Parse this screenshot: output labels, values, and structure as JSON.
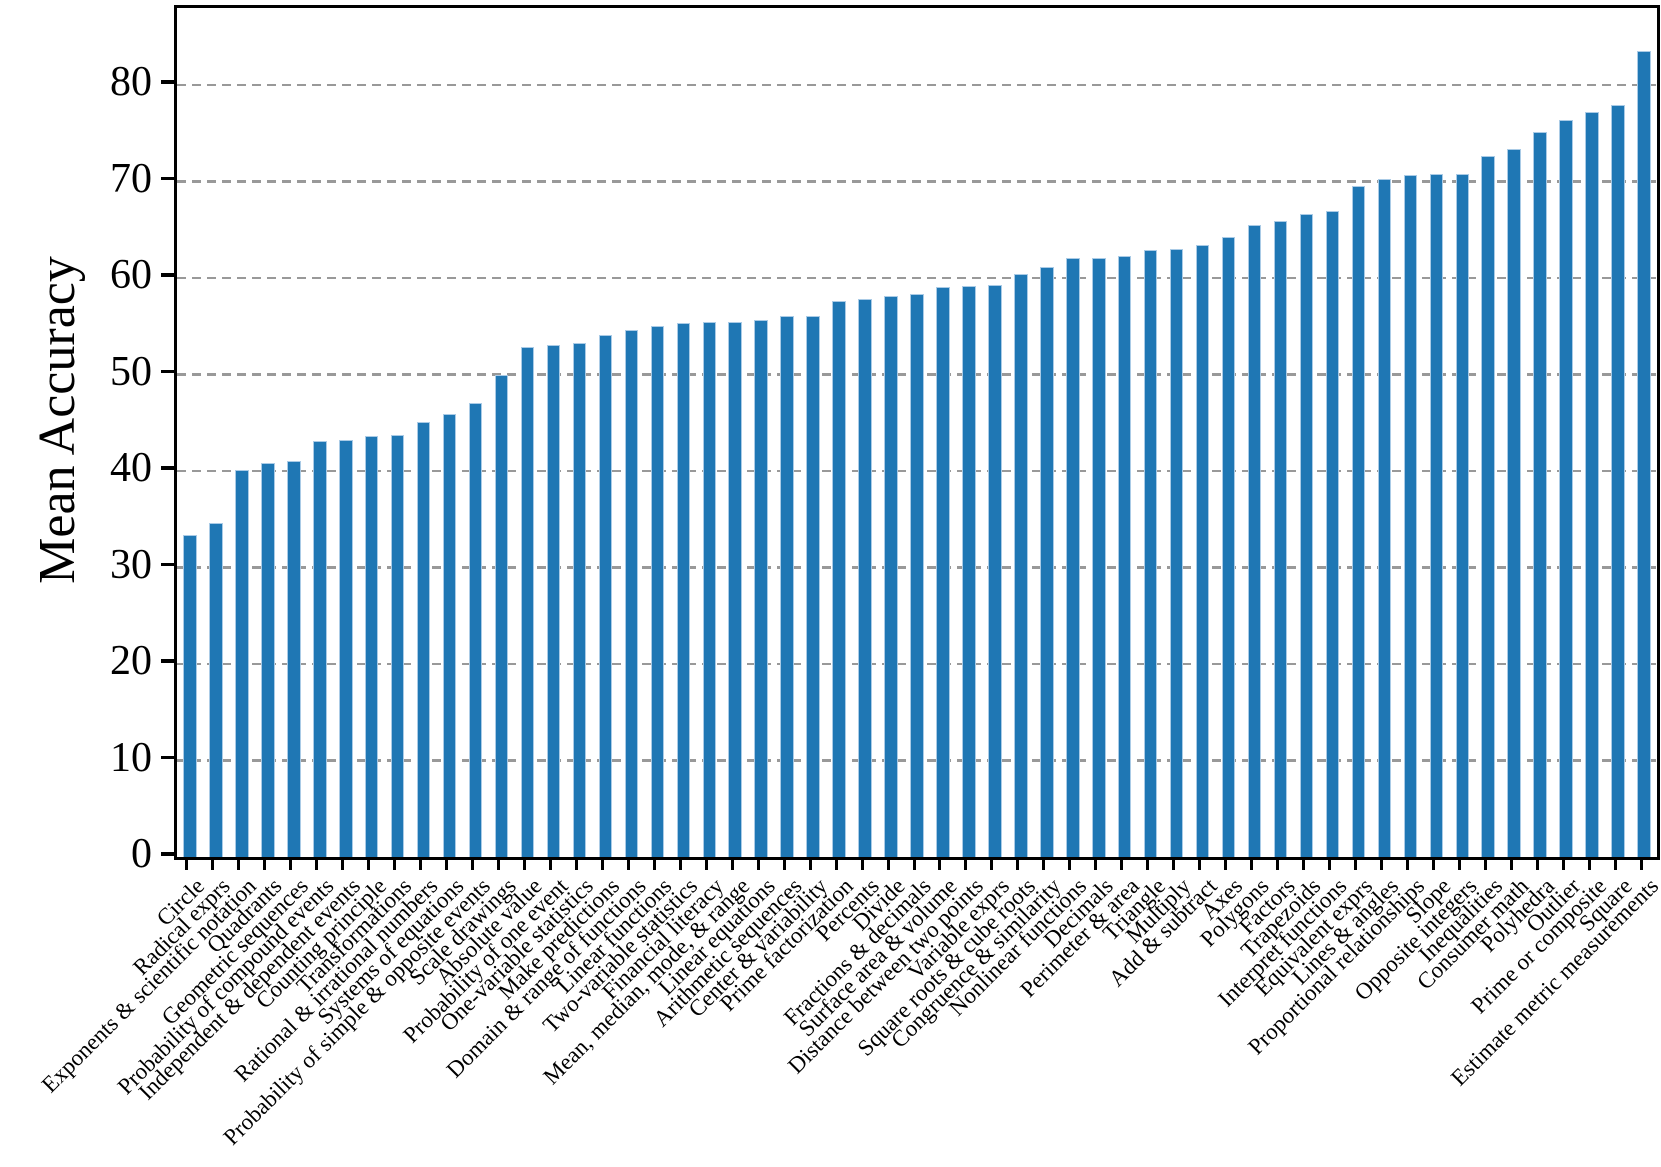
{
  "chart_data": {
    "type": "bar",
    "title": "",
    "xlabel": "",
    "ylabel": "Mean Accuracy",
    "ylim": [
      0,
      88
    ],
    "yticks": [
      0,
      10,
      20,
      30,
      40,
      50,
      60,
      70,
      80
    ],
    "grid": "horizontal-dashed",
    "legend": "none",
    "bar_color": "#1f77b4",
    "bar_edge_color": "#aacbe6",
    "gridline_color": "#999999",
    "categories": [
      "Circle",
      "Radical exprs",
      "Exponents & scientific notation",
      "Quadrants",
      "Geometric sequences",
      "Probability of compound events",
      "Independent & dependent events",
      "Counting principle",
      "Transformations",
      "Rational & irrational numbers",
      "Systems of equations",
      "Probability of simple & opposite events",
      "Scale drawings",
      "Absolute value",
      "Probability of one event",
      "One-variable statistics",
      "Make predictions",
      "Domain & range of functions",
      "Linear functions",
      "Two-variable statistics",
      "Financial literacy",
      "Mean, median, mode, & range",
      "Linear equations",
      "Arithmetic sequences",
      "Center & variability",
      "Prime factorization",
      "Percents",
      "Divide",
      "Fractions & decimals",
      "Surface area & volume",
      "Distance between two points",
      "Variable exprs",
      "Square roots & cube roots",
      "Congruence & similarity",
      "Nonlinear functions",
      "Decimals",
      "Perimeter & area",
      "Triangle",
      "Multiply",
      "Add & subtract",
      "Axes",
      "Polygons",
      "Factors",
      "Trapezoids",
      "Interpret functions",
      "Equivalent exprs",
      "Lines & angles",
      "Proportional relationships",
      "Slope",
      "Opposite integers",
      "Inequalities",
      "Consumer math",
      "Polyhedra",
      "Outlier",
      "Prime or composite",
      "Square",
      "Estimate metric measurements"
    ],
    "values": [
      33.4,
      34.6,
      40.1,
      40.8,
      41.0,
      43.1,
      43.2,
      43.6,
      43.7,
      45.1,
      45.9,
      47.1,
      50.0,
      52.9,
      53.1,
      53.3,
      54.1,
      54.6,
      55.0,
      55.3,
      55.5,
      55.5,
      55.7,
      56.1,
      56.1,
      57.6,
      57.8,
      58.1,
      58.4,
      59.1,
      59.2,
      59.3,
      60.4,
      61.2,
      62.1,
      62.1,
      62.3,
      62.9,
      63.0,
      63.4,
      64.3,
      65.5,
      65.9,
      66.7,
      67.0,
      69.6,
      70.3,
      70.7,
      70.8,
      70.8,
      72.7,
      73.4,
      75.1,
      76.4,
      77.2,
      77.9,
      83.5
    ]
  }
}
